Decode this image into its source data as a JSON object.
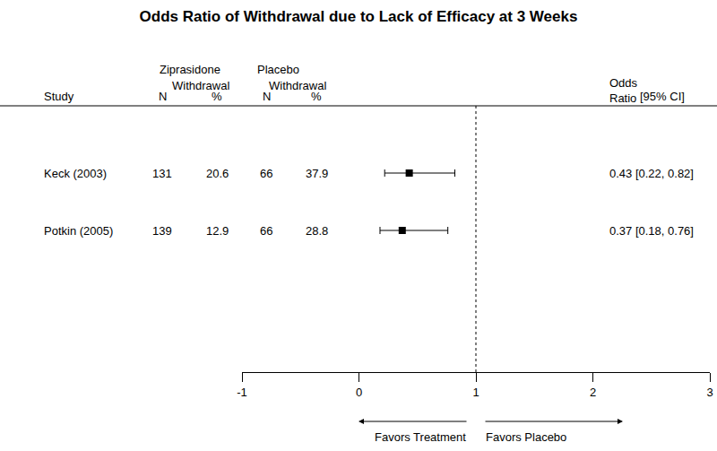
{
  "chart_data": {
    "type": "forest",
    "title": "Odds Ratio of Withdrawal due to Lack of Efficacy at 3 Weeks",
    "study_header": "Study",
    "categories": [
      "Keck (2003)",
      "Potkin (2005)"
    ],
    "groups": [
      {
        "name": "Ziprasidone",
        "subheader": "Withdrawal",
        "n_header": "N",
        "pct_header": "%",
        "n": [
          131,
          139
        ],
        "pct": [
          20.6,
          12.9
        ]
      },
      {
        "name": "Placebo",
        "subheader": "Withdrawal",
        "n_header": "N",
        "pct_header": "%",
        "n": [
          66,
          66
        ],
        "pct": [
          37.9,
          28.8
        ]
      }
    ],
    "value_header": "Odds Ratio",
    "ci_header": "[95% CI]",
    "values": [
      0.43,
      0.37
    ],
    "ci_low": [
      0.22,
      0.18
    ],
    "ci_high": [
      0.82,
      0.76
    ],
    "value_labels": [
      "0.43 [0.22, 0.82]",
      "0.37 [0.18, 0.76]"
    ],
    "reference_line": 1,
    "xlim": [
      -1,
      3
    ],
    "xticks": [
      -1,
      0,
      1,
      2,
      3
    ],
    "annotations": [
      {
        "text": "Favors Treatment",
        "direction": "left"
      },
      {
        "text": "Favors Placebo",
        "direction": "right"
      }
    ],
    "color": "#000000",
    "marker": "square",
    "grid": false,
    "tick_labels": "x"
  }
}
